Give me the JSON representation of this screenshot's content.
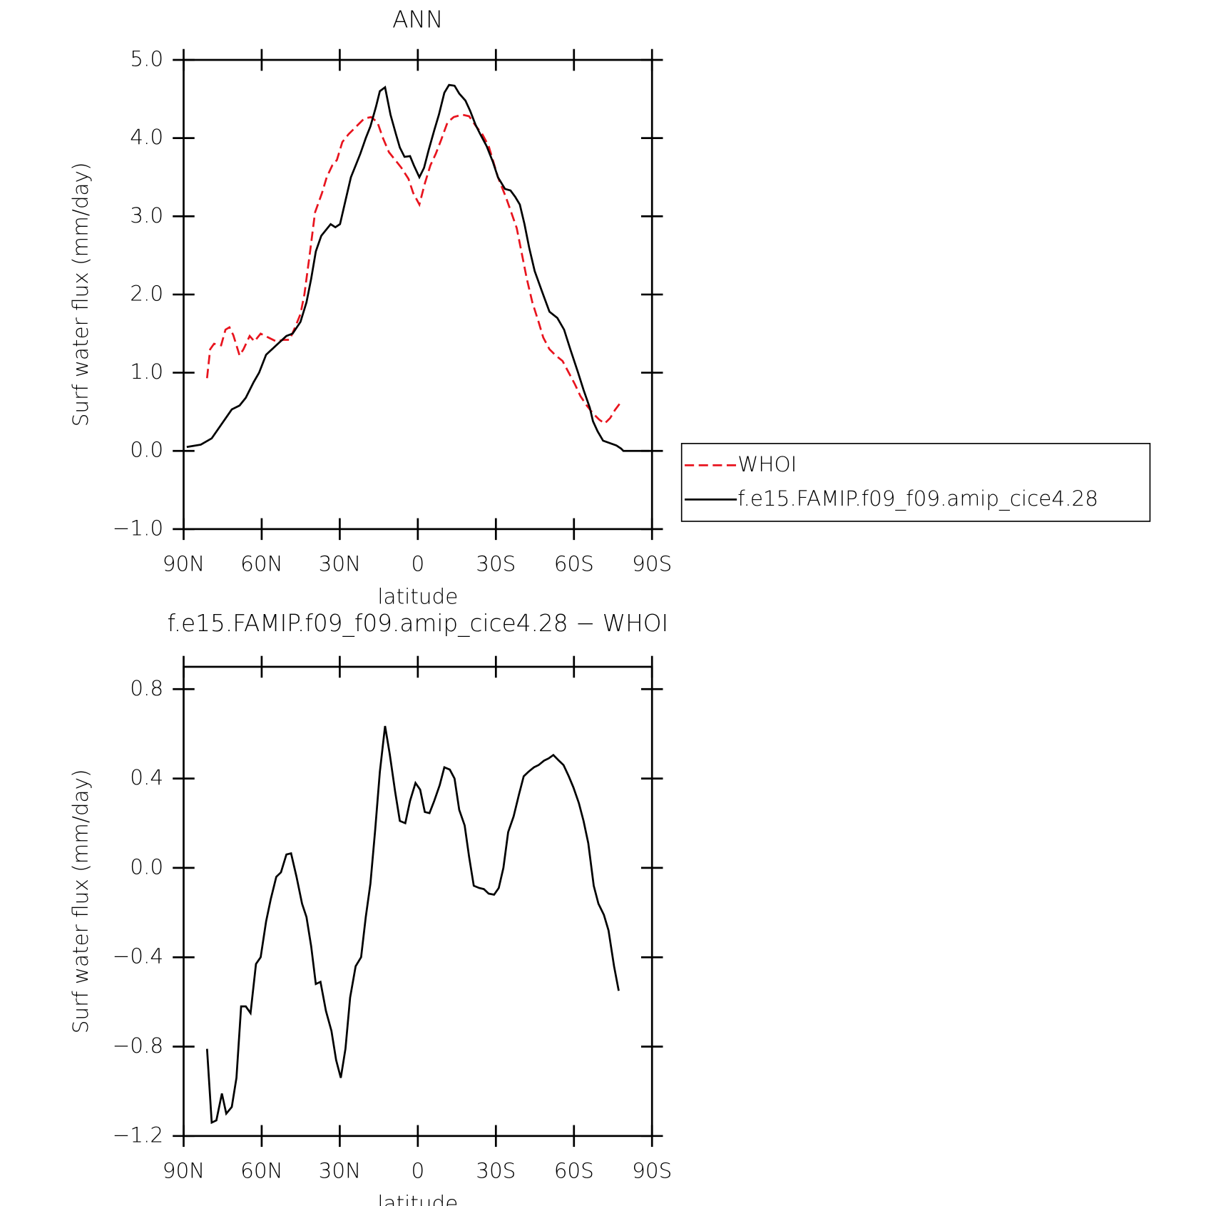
{
  "chart_data": [
    {
      "type": "line",
      "title": "ANN",
      "x_label": "latitude",
      "y_label": "Surf water flux (mm/day)",
      "xlim": [
        90,
        -90
      ],
      "xticks": [
        {
          "value": 90,
          "label": "90N"
        },
        {
          "value": 60,
          "label": "60N"
        },
        {
          "value": 30,
          "label": "30N"
        },
        0,
        {
          "value": -30,
          "label": "30S"
        },
        {
          "value": -60,
          "label": "60S"
        },
        {
          "value": -90,
          "label": "90S"
        }
      ],
      "ylim": [
        -1,
        5
      ],
      "yticks": [
        {
          "value": -1,
          "label": "−1.0"
        },
        {
          "value": 0,
          "label": "0.0"
        },
        {
          "value": 1,
          "label": "1.0"
        },
        {
          "value": 2,
          "label": "2.0"
        },
        {
          "value": 3,
          "label": "3.0"
        },
        {
          "value": 4,
          "label": "4.0"
        },
        {
          "value": 5,
          "label": "5.0"
        }
      ],
      "legend": "right",
      "series": [
        {
          "name": "WHOI",
          "color": "#e8141e",
          "line_style": "dashed",
          "x": [
            81.0,
            79.8,
            78.3,
            75.6,
            73.9,
            72.4,
            70.9,
            68.5,
            67.0,
            64.6,
            62.8,
            60.4,
            57.4,
            54.4,
            51.7,
            49.3,
            46.9,
            45.1,
            43.6,
            41.6,
            39.5,
            36.8,
            35.0,
            32.9,
            31.1,
            29.0,
            26.6,
            23.6,
            20.6,
            17.9,
            15.5,
            13.4,
            11.1,
            8.7,
            6.3,
            3.6,
            1.8,
            -0.6,
            -2.7,
            -4.8,
            -6.9,
            -9.0,
            -11.4,
            -13.8,
            -17.1,
            -19.7,
            -22.4,
            -24.8,
            -27.2,
            -29.0,
            -30.8,
            -33.8,
            -35.9,
            -38.0,
            -39.8,
            -41.9,
            -44.0,
            -46.4,
            -48.2,
            -50.6,
            -53.0,
            -55.6,
            -58.0,
            -60.4,
            -62.5,
            -64.9,
            -67.3,
            -69.7,
            -71.8,
            -73.9,
            -75.7,
            -77.5
          ],
          "values": [
            0.93,
            1.3,
            1.37,
            1.35,
            1.55,
            1.58,
            1.48,
            1.22,
            1.3,
            1.47,
            1.4,
            1.5,
            1.45,
            1.4,
            1.42,
            1.42,
            1.6,
            1.75,
            2.0,
            2.5,
            3.05,
            3.3,
            3.5,
            3.65,
            3.72,
            3.95,
            4.05,
            4.15,
            4.25,
            4.27,
            4.2,
            4.0,
            3.82,
            3.72,
            3.62,
            3.48,
            3.3,
            3.15,
            3.42,
            3.65,
            3.8,
            3.98,
            4.2,
            4.27,
            4.3,
            4.28,
            4.15,
            4.05,
            3.9,
            3.7,
            3.5,
            3.25,
            3.05,
            2.85,
            2.55,
            2.2,
            1.9,
            1.65,
            1.45,
            1.3,
            1.22,
            1.15,
            1.0,
            0.85,
            0.7,
            0.58,
            0.48,
            0.4,
            0.35,
            0.42,
            0.52,
            0.6
          ]
        },
        {
          "name": "f.e15.FAMIP.f09_f09.amip_cice4.28",
          "color": "#000000",
          "line_style": "solid",
          "x": [
            88.8,
            83.4,
            79.2,
            71.5,
            68.5,
            66.1,
            63.1,
            61.0,
            58.3,
            54.4,
            50.5,
            48.1,
            45.1,
            42.8,
            41.0,
            39.2,
            37.1,
            33.5,
            31.7,
            29.9,
            27.8,
            25.7,
            23.9,
            22.1,
            20.0,
            18.2,
            16.1,
            14.6,
            12.6,
            10.5,
            8.4,
            6.9,
            5.1,
            3.0,
            1.5,
            -0.6,
            -2.4,
            -4.2,
            -6.3,
            -8.1,
            -10.2,
            -12.0,
            -14.1,
            -15.9,
            -18.3,
            -20.1,
            -22.2,
            -24.0,
            -26.4,
            -28.8,
            -30.8,
            -33.5,
            -35.6,
            -37.4,
            -39.2,
            -41.0,
            -42.8,
            -44.9,
            -47.6,
            -50.6,
            -53.6,
            -56.2,
            -58.6,
            -61.6,
            -63.7,
            -66.1,
            -67.3,
            -69.1,
            -71.2,
            -76.3,
            -78.1,
            -79.0,
            -89.0
          ],
          "values": [
            0.05,
            0.08,
            0.16,
            0.53,
            0.58,
            0.68,
            0.88,
            1.0,
            1.23,
            1.35,
            1.47,
            1.5,
            1.65,
            1.9,
            2.2,
            2.55,
            2.75,
            2.9,
            2.86,
            2.9,
            3.2,
            3.5,
            3.65,
            3.8,
            4.0,
            4.15,
            4.4,
            4.6,
            4.65,
            4.3,
            4.05,
            3.88,
            3.76,
            3.77,
            3.65,
            3.5,
            3.62,
            3.85,
            4.1,
            4.3,
            4.58,
            4.68,
            4.67,
            4.57,
            4.48,
            4.35,
            4.17,
            4.05,
            3.9,
            3.7,
            3.5,
            3.35,
            3.33,
            3.25,
            3.15,
            2.9,
            2.6,
            2.3,
            2.05,
            1.78,
            1.7,
            1.55,
            1.3,
            1.0,
            0.78,
            0.55,
            0.38,
            0.25,
            0.13,
            0.07,
            0.03,
            0.0,
            0.0
          ]
        }
      ]
    },
    {
      "type": "line",
      "title": "f.e15.FAMIP.f09_f09.amip_cice4.28 − WHOI",
      "x_label": "latitude",
      "y_label": "Surf water flux (mm/day)",
      "xlim": [
        90,
        -90
      ],
      "xticks": [
        {
          "value": 90,
          "label": "90N"
        },
        {
          "value": 60,
          "label": "60N"
        },
        {
          "value": 30,
          "label": "30N"
        },
        0,
        {
          "value": -30,
          "label": "30S"
        },
        {
          "value": -60,
          "label": "60S"
        },
        {
          "value": -90,
          "label": "90S"
        }
      ],
      "ylim": [
        -1.2,
        0.9
      ],
      "yticks": [
        {
          "value": -1.2,
          "label": "−1.2"
        },
        {
          "value": -0.8,
          "label": "−0.8"
        },
        {
          "value": -0.4,
          "label": "−0.4"
        },
        {
          "value": 0,
          "label": "0.0"
        },
        0.4,
        0.8
      ],
      "series": [
        {
          "color": "#000000",
          "line_style": "solid",
          "x": [
            81.0,
            79.2,
            77.4,
            75.3,
            73.6,
            71.5,
            69.7,
            67.9,
            66.1,
            64.3,
            62.2,
            60.4,
            58.3,
            56.5,
            54.4,
            52.6,
            50.5,
            48.7,
            46.6,
            44.5,
            42.8,
            41.0,
            39.2,
            37.4,
            35.3,
            33.2,
            31.4,
            29.6,
            27.8,
            26.0,
            23.9,
            21.8,
            20.0,
            18.2,
            16.4,
            14.6,
            12.6,
            10.8,
            8.7,
            6.9,
            4.8,
            3.0,
            0.9,
            -0.9,
            -2.7,
            -4.5,
            -6.3,
            -8.4,
            -10.2,
            -12.3,
            -14.1,
            -15.9,
            -18.0,
            -19.7,
            -21.5,
            -23.6,
            -25.4,
            -27.2,
            -29.3,
            -31.1,
            -32.9,
            -34.7,
            -36.8,
            -38.9,
            -40.7,
            -42.5,
            -44.6,
            -46.4,
            -48.5,
            -50.3,
            -52.1,
            -54.2,
            -56.0,
            -58.0,
            -59.8,
            -61.9,
            -63.7,
            -65.5,
            -67.6,
            -69.4,
            -71.5,
            -73.3,
            -75.4,
            -77.2
          ],
          "values": [
            -0.81,
            -1.14,
            -1.13,
            -1.01,
            -1.1,
            -1.07,
            -0.94,
            -0.62,
            -0.62,
            -0.65,
            -0.43,
            -0.4,
            -0.24,
            -0.14,
            -0.04,
            -0.02,
            0.06,
            0.065,
            -0.04,
            -0.16,
            -0.22,
            -0.35,
            -0.52,
            -0.51,
            -0.64,
            -0.73,
            -0.86,
            -0.94,
            -0.81,
            -0.58,
            -0.44,
            -0.4,
            -0.22,
            -0.07,
            0.17,
            0.43,
            0.635,
            0.51,
            0.34,
            0.21,
            0.2,
            0.3,
            0.38,
            0.35,
            0.25,
            0.245,
            0.3,
            0.37,
            0.45,
            0.44,
            0.4,
            0.26,
            0.19,
            0.05,
            -0.08,
            -0.09,
            -0.095,
            -0.115,
            -0.12,
            -0.09,
            0.0,
            0.16,
            0.23,
            0.33,
            0.41,
            0.43,
            0.45,
            0.46,
            0.48,
            0.49,
            0.505,
            0.48,
            0.46,
            0.41,
            0.36,
            0.29,
            0.21,
            0.11,
            -0.08,
            -0.16,
            -0.21,
            -0.28,
            -0.44,
            -0.55
          ]
        }
      ]
    }
  ]
}
